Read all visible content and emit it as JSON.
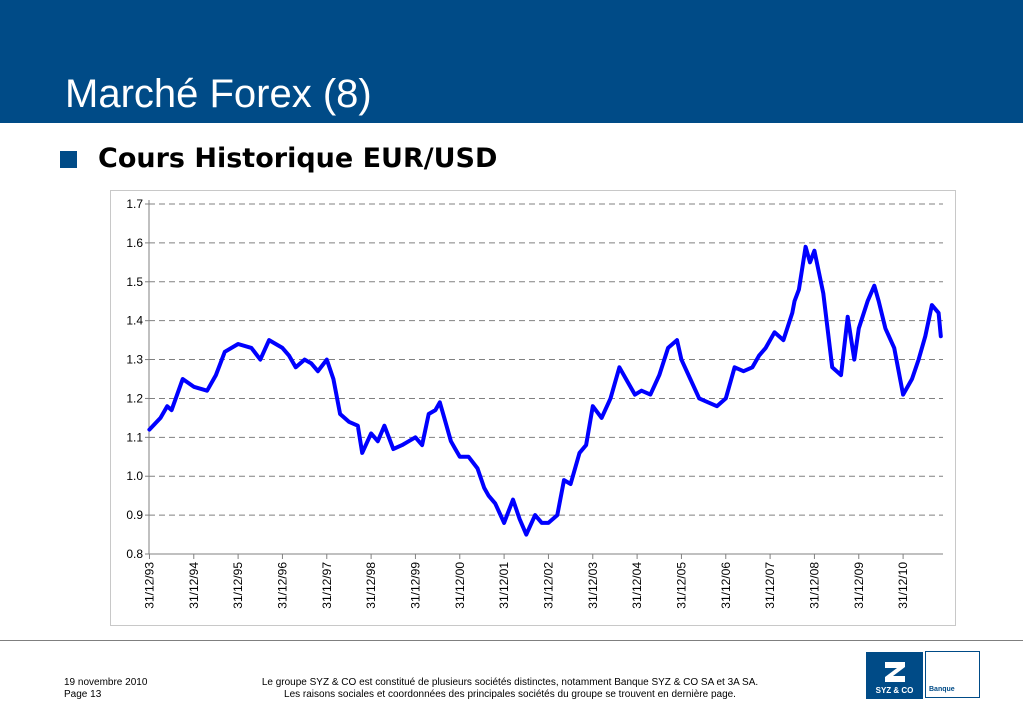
{
  "slide": {
    "title": "Marché Forex (8)",
    "bullet": "Cours Historique EUR/USD"
  },
  "footer": {
    "date": "19 novembre 2010",
    "page": "Page 13",
    "notice_line1": "Le groupe SYZ & CO est constitué de plusieurs sociétés distinctes, notamment Banque SYZ & CO SA et 3A SA.",
    "notice_line2": "Les raisons sociales et coordonnées des principales sociétés du groupe se trouvent en dernière page.",
    "logo_name": "SYZ & CO",
    "logo_sub": "Banque"
  },
  "colors": {
    "header": "#004b87",
    "series": "#0000ff",
    "grid": "#808080"
  },
  "chart_data": {
    "type": "line",
    "title": "",
    "xlabel": "",
    "ylabel": "",
    "ylim": [
      0.8,
      1.7
    ],
    "yticks": [
      "0.8",
      "0.9",
      "1.0",
      "1.1",
      "1.2",
      "1.3",
      "1.4",
      "1.5",
      "1.6",
      "1.7"
    ],
    "xlim": [
      1993.99,
      2011.9
    ],
    "xticks": [
      "31/12/93",
      "31/12/94",
      "31/12/95",
      "31/12/96",
      "31/12/97",
      "31/12/98",
      "31/12/99",
      "31/12/00",
      "31/12/01",
      "31/12/02",
      "31/12/03",
      "31/12/04",
      "31/12/05",
      "31/12/06",
      "31/12/07",
      "31/12/08",
      "31/12/09",
      "31/12/10"
    ],
    "grid": "horizontal dashed",
    "legend": "none",
    "series": [
      {
        "x": [
          1994.0,
          1994.25,
          1994.4,
          1994.5,
          1994.75,
          1995.0,
          1995.3,
          1995.5,
          1995.7,
          1996.0,
          1996.3,
          1996.5,
          1996.7,
          1997.0,
          1997.15,
          1997.3,
          1997.5,
          1997.65,
          1997.8,
          1998.0,
          1998.15,
          1998.3,
          1998.5,
          1998.7,
          1998.8,
          1999.0,
          1999.15,
          1999.3,
          1999.5,
          1999.7,
          1999.85,
          2000.0,
          2000.15,
          2000.3,
          2000.45,
          2000.55,
          2000.65,
          2000.8,
          2000.9,
          2001.0,
          2001.2,
          2001.4,
          2001.55,
          2001.65,
          2001.8,
          2002.0,
          2002.2,
          2002.35,
          2002.5,
          2002.7,
          2002.85,
          2003.0,
          2003.2,
          2003.35,
          2003.5,
          2003.7,
          2003.85,
          2004.0,
          2004.2,
          2004.4,
          2004.6,
          2004.8,
          2004.95,
          2005.1,
          2005.3,
          2005.5,
          2005.7,
          2005.9,
          2006.0,
          2006.2,
          2006.4,
          2006.6,
          2006.8,
          2007.0,
          2007.2,
          2007.4,
          2007.6,
          2007.75,
          2007.9,
          2008.1,
          2008.3,
          2008.5,
          2008.55,
          2008.65,
          2008.8,
          2008.9,
          2009.0,
          2009.2,
          2009.4,
          2009.6,
          2009.75,
          2009.9,
          2010.0,
          2010.2,
          2010.35,
          2010.45,
          2010.6,
          2010.8,
          2011.0,
          2011.2,
          2011.35,
          2011.5,
          2011.65,
          2011.8,
          2011.85
        ],
        "y": [
          1.12,
          1.15,
          1.18,
          1.17,
          1.25,
          1.23,
          1.22,
          1.26,
          1.32,
          1.34,
          1.33,
          1.3,
          1.35,
          1.33,
          1.31,
          1.28,
          1.3,
          1.29,
          1.27,
          1.3,
          1.25,
          1.16,
          1.14,
          1.13,
          1.06,
          1.11,
          1.09,
          1.13,
          1.07,
          1.08,
          1.09,
          1.1,
          1.08,
          1.16,
          1.17,
          1.19,
          1.15,
          1.09,
          1.07,
          1.05,
          1.05,
          1.02,
          0.97,
          0.95,
          0.93,
          0.88,
          0.94,
          0.89,
          0.85,
          0.9,
          0.88,
          0.88,
          0.9,
          0.99,
          0.98,
          1.06,
          1.08,
          1.18,
          1.15,
          1.2,
          1.28,
          1.24,
          1.21,
          1.22,
          1.21,
          1.26,
          1.33,
          1.35,
          1.3,
          1.25,
          1.2,
          1.19,
          1.18,
          1.2,
          1.28,
          1.27,
          1.28,
          1.31,
          1.33,
          1.37,
          1.35,
          1.42,
          1.45,
          1.48,
          1.59,
          1.55,
          1.58,
          1.47,
          1.28,
          1.26,
          1.41,
          1.3,
          1.38,
          1.45,
          1.49,
          1.45,
          1.38,
          1.33,
          1.21,
          1.25,
          1.3,
          1.36,
          1.44,
          1.42,
          1.36
        ]
      }
    ]
  }
}
